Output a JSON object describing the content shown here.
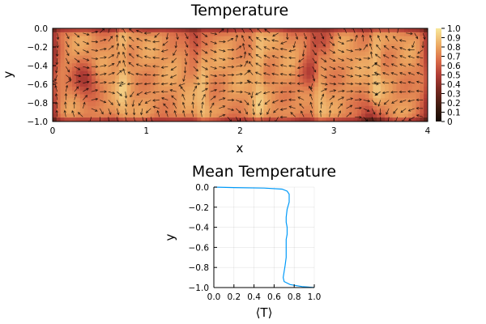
{
  "chart_data": [
    {
      "type": "heatmap",
      "title": "Temperature",
      "xlabel": "x",
      "ylabel": "y",
      "xlim": [
        0,
        4
      ],
      "ylim": [
        -1,
        0
      ],
      "xticks": [
        "0",
        "1",
        "2",
        "3",
        "4"
      ],
      "yticks": [
        "0.0",
        "−0.2",
        "−0.4",
        "−0.6",
        "−0.8",
        "−1.0"
      ],
      "colorbar": {
        "range": [
          0,
          1
        ],
        "ticks": [
          "0",
          "0.1",
          "0.2",
          "0.3",
          "0.4",
          "0.5",
          "0.6",
          "0.7",
          "0.8",
          "0.9",
          "1.0"
        ]
      },
      "grid": false,
      "overlay": "velocity quiver arrows",
      "colors": {
        "low": "#1a0f08",
        "mid": "#c84a3a",
        "high": "#f7e08a",
        "arrow": "#000000"
      },
      "features": {
        "plume_x": [
          0.75,
          1.6,
          2.2,
          2.85,
          3.45
        ],
        "dark_regions": [
          [
            0.35,
            -0.55
          ],
          [
            2.75,
            -0.5
          ],
          [
            3.4,
            -0.95
          ],
          [
            1.55,
            -0.1
          ],
          [
            2.85,
            -0.1
          ]
        ]
      }
    },
    {
      "type": "line",
      "title": "Mean Temperature",
      "xlabel": "⟨T⟩",
      "ylabel": "y",
      "xlim": [
        0,
        1
      ],
      "ylim": [
        -1,
        0
      ],
      "xticks": [
        "0.0",
        "0.2",
        "0.4",
        "0.6",
        "0.8",
        "1.0"
      ],
      "yticks": [
        "0.0",
        "−0.2",
        "−0.4",
        "−0.6",
        "−0.8",
        "−1.0"
      ],
      "grid": true,
      "series": [
        {
          "color": "#009af9",
          "x": [
            0.0,
            0.2,
            0.5,
            0.68,
            0.73,
            0.75,
            0.75,
            0.73,
            0.72,
            0.72,
            0.73,
            0.73,
            0.72,
            0.72,
            0.72,
            0.72,
            0.71,
            0.7,
            0.69,
            0.7,
            0.76,
            0.88,
            1.0
          ],
          "y": [
            0.0,
            -0.005,
            -0.01,
            -0.02,
            -0.04,
            -0.07,
            -0.15,
            -0.22,
            -0.3,
            -0.35,
            -0.4,
            -0.47,
            -0.52,
            -0.6,
            -0.65,
            -0.7,
            -0.78,
            -0.84,
            -0.9,
            -0.94,
            -0.97,
            -0.99,
            -1.0
          ]
        }
      ]
    }
  ]
}
